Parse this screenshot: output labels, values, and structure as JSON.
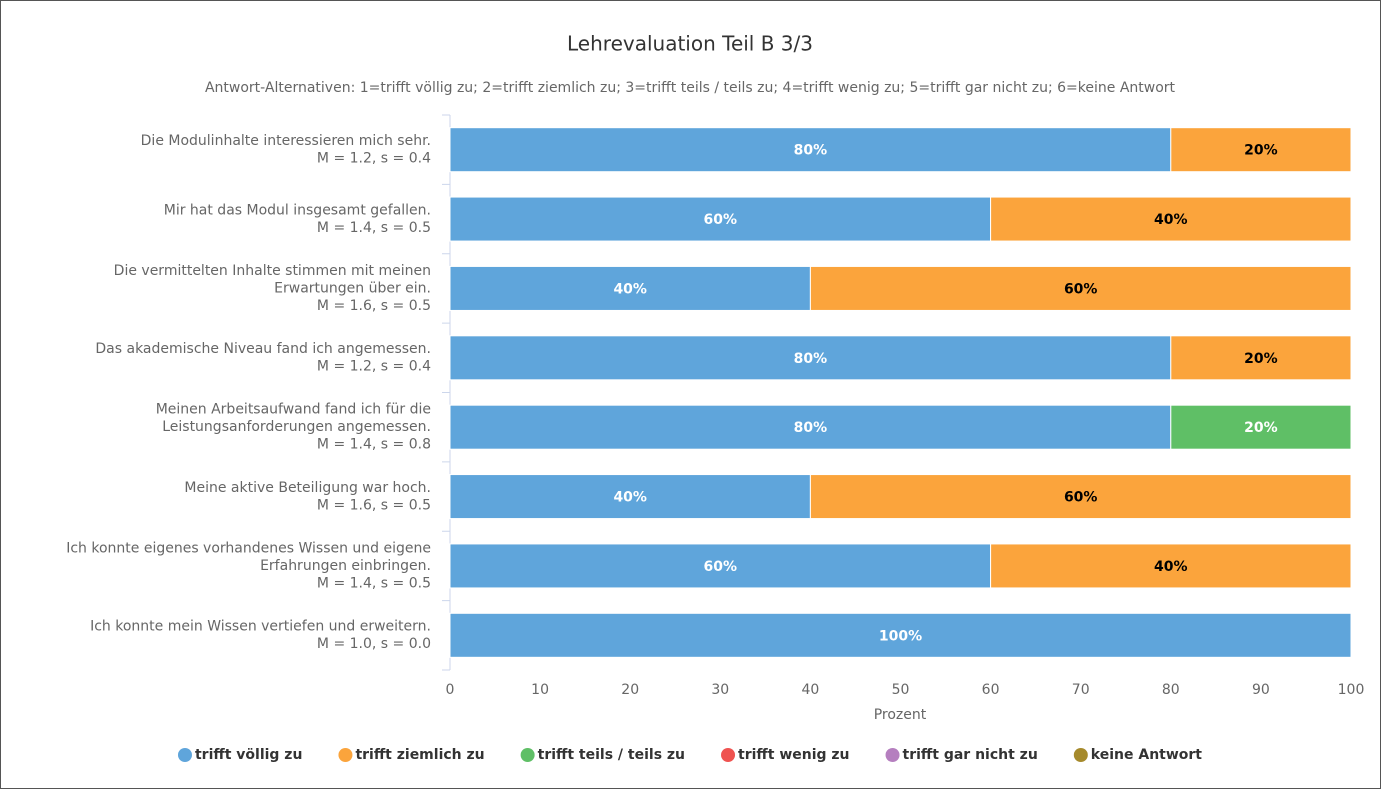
{
  "chart_data": {
    "type": "stacked-barh",
    "title": "Lehrevaluation Teil B 3/3",
    "subtitle": "Antwort-Alternativen: 1=trifft völlig zu; 2=trifft ziemlich zu; 3=trifft teils / teils zu; 4=trifft wenig zu; 5=trifft gar nicht zu; 6=keine Antwort",
    "categories": [
      [
        "Die Modulinhalte interessieren mich sehr.",
        "M = 1.2, s = 0.4"
      ],
      [
        "Mir hat das Modul insgesamt gefallen.",
        "M = 1.4, s = 0.5"
      ],
      [
        "Die vermittelten Inhalte stimmen mit meinen",
        "Erwartungen über ein.",
        "M = 1.6, s = 0.5"
      ],
      [
        "Das akademische Niveau fand ich angemessen.",
        "M = 1.2, s = 0.4"
      ],
      [
        "Meinen Arbeitsaufwand fand ich für die",
        "Leistungsanforderungen angemessen.",
        "M = 1.4, s = 0.8"
      ],
      [
        "Meine aktive Beteiligung war hoch.",
        "M = 1.6, s = 0.5"
      ],
      [
        "Ich konnte eigenes vorhandenes Wissen und eigene",
        "Erfahrungen einbringen.",
        "M = 1.4, s = 0.5"
      ],
      [
        "Ich konnte mein Wissen vertiefen und erweitern.",
        "M = 1.0, s = 0.0"
      ]
    ],
    "series": [
      {
        "name": "trifft völlig zu",
        "color": "#5fa5db",
        "label_color": "#ffffff",
        "values": [
          80,
          60,
          40,
          80,
          80,
          40,
          60,
          100
        ],
        "value_labels": [
          "80%",
          "60%",
          "40%",
          "80%",
          "80%",
          "40%",
          "60%",
          "100%"
        ]
      },
      {
        "name": "trifft ziemlich zu",
        "color": "#fba43c",
        "label_color": "#000000",
        "values": [
          20,
          40,
          60,
          20,
          0,
          60,
          40,
          0
        ],
        "value_labels": [
          "20%",
          "40%",
          "60%",
          "20%",
          null,
          "60%",
          "40%",
          null
        ]
      },
      {
        "name": "trifft teils / teils zu",
        "color": "#5fbf66",
        "label_color": "#ffffff",
        "values": [
          0,
          0,
          0,
          0,
          20,
          0,
          0,
          0
        ],
        "value_labels": [
          null,
          null,
          null,
          null,
          "20%",
          null,
          null,
          null
        ]
      },
      {
        "name": "trifft wenig zu",
        "color": "#ef5350",
        "label_color": "#ffffff",
        "values": [
          0,
          0,
          0,
          0,
          0,
          0,
          0,
          0
        ]
      },
      {
        "name": "trifft gar nicht zu",
        "color": "#b57fbf",
        "label_color": "#ffffff",
        "values": [
          0,
          0,
          0,
          0,
          0,
          0,
          0,
          0
        ]
      },
      {
        "name": "keine Antwort",
        "color": "#a68a2c",
        "label_color": "#ffffff",
        "values": [
          0,
          0,
          0,
          0,
          0,
          0,
          0,
          0
        ]
      }
    ],
    "xlim": [
      0,
      100
    ],
    "xticks": [
      0,
      10,
      20,
      30,
      40,
      50,
      60,
      70,
      80,
      90,
      100
    ],
    "xlabel": "Prozent",
    "legend": "bottom"
  }
}
